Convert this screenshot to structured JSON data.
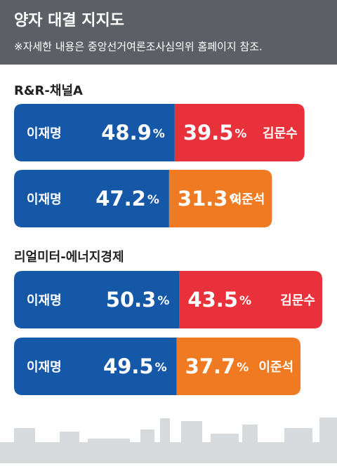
{
  "chart_data": {
    "type": "paired-bar",
    "title": "양자 대결 지지도",
    "subtitle": "※자세한 내용은 중앙선거여론조사심의위 홈페이지 참조.",
    "unit": "%",
    "groups": [
      {
        "name": "R&R-채널A",
        "matchups": [
          {
            "series": [
              {
                "name": "이재명",
                "color": "#1658a8",
                "value": 48.9
              },
              {
                "name": "김문수",
                "color": "#e8313a",
                "value": 39.5
              }
            ]
          },
          {
            "series": [
              {
                "name": "이재명",
                "color": "#1658a8",
                "value": 47.2
              },
              {
                "name": "이준석",
                "color": "#f07a22",
                "value": 31.3
              }
            ]
          }
        ]
      },
      {
        "name": "리얼미터-에너지경제",
        "matchups": [
          {
            "series": [
              {
                "name": "이재명",
                "color": "#1658a8",
                "value": 50.3
              },
              {
                "name": "김문수",
                "color": "#e8313a",
                "value": 43.5
              }
            ]
          },
          {
            "series": [
              {
                "name": "이재명",
                "color": "#1658a8",
                "value": 49.5
              },
              {
                "name": "이준석",
                "color": "#f07a22",
                "value": 37.7
              }
            ]
          }
        ]
      }
    ]
  }
}
